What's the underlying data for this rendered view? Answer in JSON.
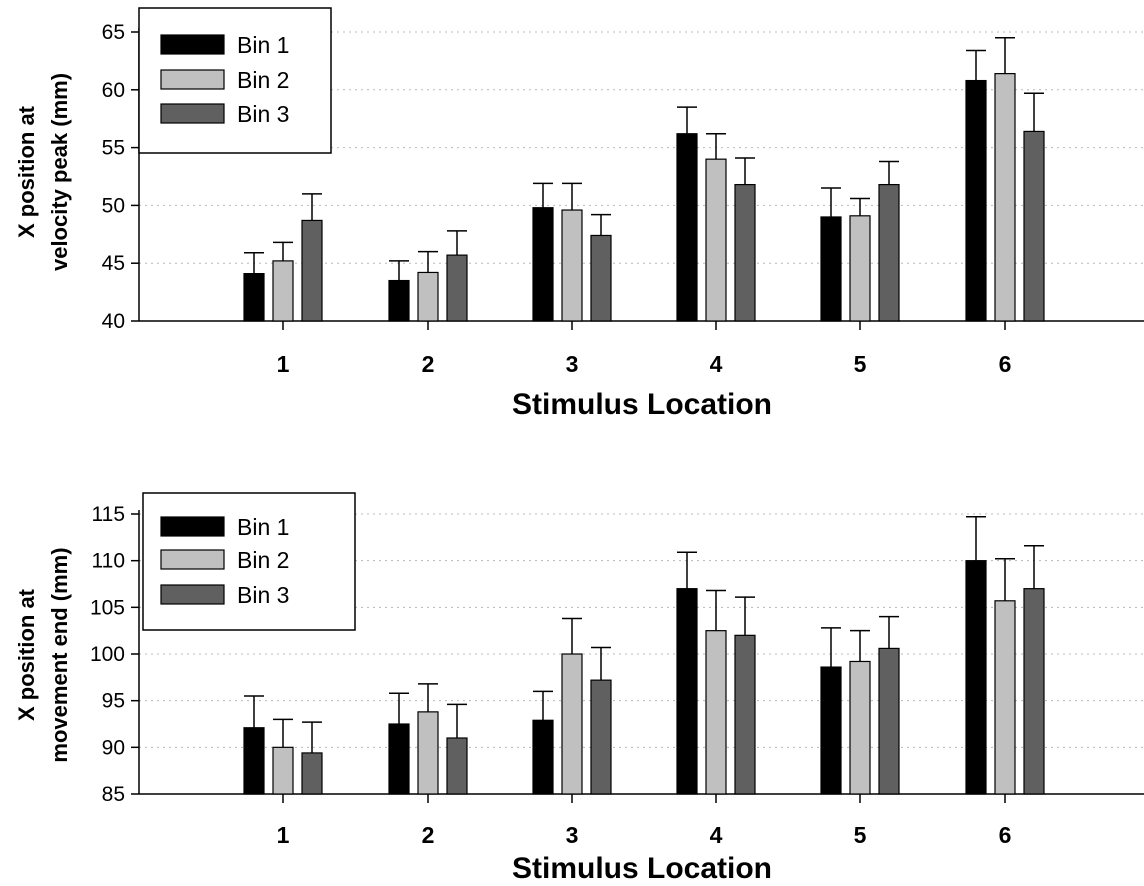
{
  "chart_data": [
    {
      "type": "bar",
      "categories": [
        "1",
        "2",
        "3",
        "4",
        "5",
        "6"
      ],
      "series": [
        {
          "name": "Bin 1",
          "values": [
            44.1,
            43.5,
            49.8,
            56.2,
            49.0,
            60.8
          ],
          "errors": [
            1.8,
            1.7,
            2.1,
            2.3,
            2.5,
            2.6
          ]
        },
        {
          "name": "Bin 2",
          "values": [
            45.2,
            44.2,
            49.6,
            54.0,
            49.1,
            61.4
          ],
          "errors": [
            1.6,
            1.8,
            2.3,
            2.2,
            1.5,
            3.1
          ]
        },
        {
          "name": "Bin 3",
          "values": [
            48.7,
            45.7,
            47.4,
            51.8,
            51.8,
            56.4
          ],
          "errors": [
            2.3,
            2.1,
            1.8,
            2.3,
            2.0,
            3.3
          ]
        }
      ],
      "colors": [
        "#000000",
        "#c0c0c0",
        "#606060"
      ],
      "xlabel": "Stimulus Location",
      "ylabel": [
        "X position at",
        "velocity peak (mm)"
      ],
      "ylim": [
        40,
        65
      ],
      "yticks": [
        40,
        45,
        50,
        55,
        60,
        65
      ],
      "grid": "horizontal dotted",
      "legend_position": "top-left"
    },
    {
      "type": "bar",
      "categories": [
        "1",
        "2",
        "3",
        "4",
        "5",
        "6"
      ],
      "series": [
        {
          "name": "Bin 1",
          "values": [
            92.1,
            92.5,
            92.9,
            107.0,
            98.6,
            110.0
          ],
          "errors": [
            3.4,
            3.3,
            3.1,
            3.9,
            4.2,
            4.7
          ]
        },
        {
          "name": "Bin 2",
          "values": [
            90.0,
            93.8,
            100.0,
            102.5,
            99.2,
            105.7
          ],
          "errors": [
            3.0,
            3.0,
            3.8,
            4.3,
            3.3,
            4.5
          ]
        },
        {
          "name": "Bin 3",
          "values": [
            89.4,
            91.0,
            97.2,
            102.0,
            100.6,
            107.0
          ],
          "errors": [
            3.3,
            3.6,
            3.5,
            4.1,
            3.4,
            4.6
          ]
        }
      ],
      "colors": [
        "#000000",
        "#c0c0c0",
        "#606060"
      ],
      "xlabel": "Stimulus Location",
      "ylabel": [
        "X position at",
        "movement end (mm)"
      ],
      "ylim": [
        85,
        115
      ],
      "yticks": [
        85,
        90,
        95,
        100,
        105,
        110,
        115
      ],
      "grid": "horizontal dotted",
      "legend_position": "top-left"
    }
  ]
}
